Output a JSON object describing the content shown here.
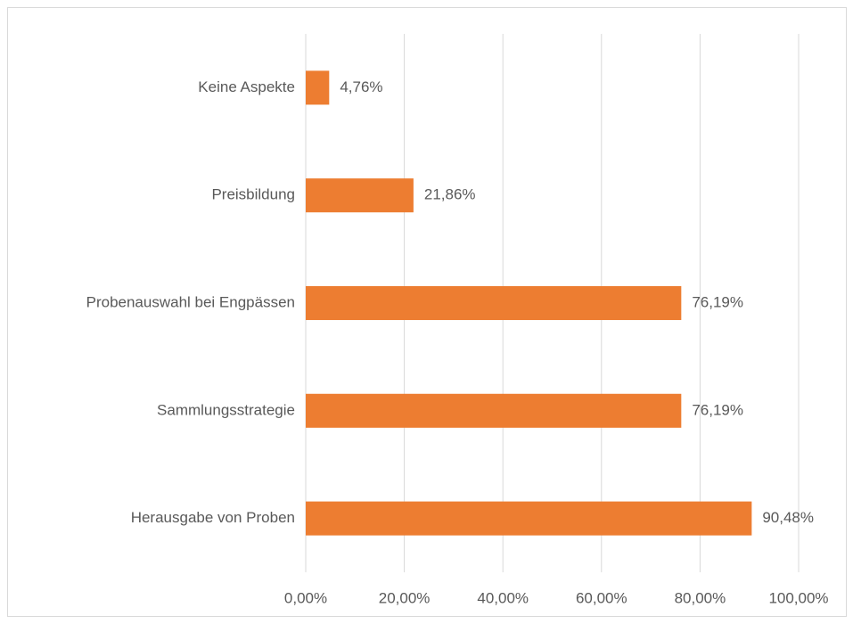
{
  "chart_data": {
    "type": "bar",
    "orientation": "horizontal",
    "categories": [
      "Keine Aspekte",
      "Preisbildung",
      "Probenauswahl bei Engpässen",
      "Sammlungsstrategie",
      "Herausgabe von Proben"
    ],
    "values": [
      4.76,
      21.86,
      76.19,
      76.19,
      90.48
    ],
    "value_labels": [
      "4,76%",
      "21,86%",
      "76,19%",
      "76,19%",
      "90,48%"
    ],
    "color": "#ed7d31",
    "xlim": [
      0,
      100
    ],
    "xticks": [
      {
        "value": 0,
        "label": "0,00%"
      },
      {
        "value": 20,
        "label": "20,00%"
      },
      {
        "value": 40,
        "label": "40,00%"
      },
      {
        "value": 60,
        "label": "60,00%"
      },
      {
        "value": 80,
        "label": "80,00%"
      },
      {
        "value": 100,
        "label": "100,00%"
      }
    ],
    "grid": true
  }
}
